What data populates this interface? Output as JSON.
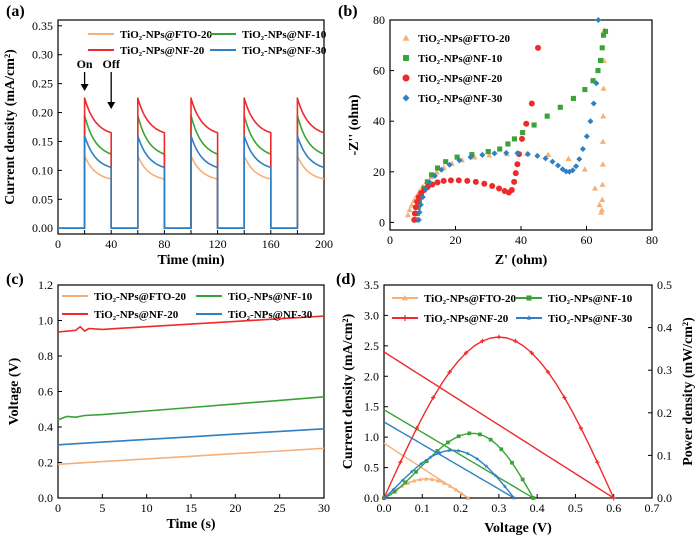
{
  "chart_data": [
    {
      "panel": "(a)",
      "type": "line",
      "xlabel": "Time (min)",
      "ylabel": "Current density (mA/cm²)",
      "xlim": [
        0,
        200
      ],
      "ylim": [
        -0.01,
        0.36
      ],
      "xticks": [
        0,
        20,
        40,
        60,
        80,
        100,
        120,
        140,
        160,
        180,
        200
      ],
      "xtick_labels": [
        "0",
        "",
        "40",
        "",
        "80",
        "",
        "120",
        "",
        "160",
        "",
        "200"
      ],
      "yticks": [
        0.0,
        0.05,
        0.1,
        0.15,
        0.2,
        0.25,
        0.3,
        0.35
      ],
      "ytick_labels": [
        "0.00",
        "0.05",
        "0.10",
        "0.15",
        "0.20",
        "0.25",
        "0.30",
        "0.35"
      ],
      "on_intervals": [
        [
          20,
          40
        ],
        [
          60,
          80
        ],
        [
          100,
          120
        ],
        [
          140,
          160
        ],
        [
          180,
          200
        ]
      ],
      "annotations": [
        {
          "text": "On",
          "x": 20
        },
        {
          "text": "Off",
          "x": 40
        }
      ],
      "legend": "top",
      "series": [
        {
          "name": "TiO₂-NPs@FTO-20",
          "color": "#f5b07a",
          "peak": 0.125,
          "end": 0.085
        },
        {
          "name": "TiO₂-NPs@NF-10",
          "color": "#3aa335",
          "peak": 0.195,
          "end": 0.128
        },
        {
          "name": "TiO₂-NPs@NF-20",
          "color": "#ee2a2a",
          "peak": 0.225,
          "end": 0.165
        },
        {
          "name": "TiO₂-NPs@NF-30",
          "color": "#2e7fc4",
          "peak": 0.16,
          "end": 0.105
        }
      ]
    },
    {
      "panel": "(b)",
      "type": "scatter",
      "xlabel": "Z' (ohm)",
      "ylabel": "-Z'' (ohm)",
      "xlim": [
        0,
        80
      ],
      "ylim": [
        -3,
        80
      ],
      "xticks": [
        0,
        20,
        40,
        60,
        80
      ],
      "yticks": [
        0,
        20,
        40,
        60,
        80
      ],
      "legend": "top-left",
      "series": [
        {
          "name": "TiO₂-NPs@FTO-20",
          "color": "#f5b07a",
          "marker": "triangle",
          "x": [
            5.5,
            6.0,
            6.6,
            7.3,
            8.1,
            9.0,
            10.0,
            11.2,
            12.6,
            14.3,
            16.4,
            18.9,
            22.0,
            25.8,
            30.3,
            35.7,
            41.8,
            48.3,
            54.5,
            59.5,
            62.6,
            64.0,
            64.5,
            64.7,
            64.8,
            64.9,
            65.0,
            65.0,
            65.1,
            65.2,
            65.3,
            65.4
          ],
          "y": [
            3.0,
            5.0,
            6.8,
            8.6,
            10.4,
            12.3,
            14.2,
            16.1,
            18.0,
            19.9,
            21.7,
            23.3,
            24.7,
            25.8,
            26.6,
            27.1,
            27.2,
            26.8,
            25.2,
            21.0,
            13.5,
            7.0,
            4.0,
            5.0,
            9.0,
            15.0,
            23.0,
            32.0,
            42.0,
            53.0,
            64.0,
            76.0
          ]
        },
        {
          "name": "TiO₂-NPs@NF-10",
          "color": "#3aa335",
          "marker": "square",
          "x": [
            8.1,
            8.3,
            8.6,
            9.0,
            9.6,
            10.4,
            11.4,
            12.7,
            14.5,
            17.0,
            20.5,
            25.0,
            30.0,
            33.5,
            36.0,
            38.0,
            40.5,
            44.0,
            48.0,
            52.0,
            56.0,
            59.5,
            62.0,
            63.5,
            64.3,
            64.8,
            65.2,
            65.8
          ],
          "y": [
            1.0,
            3.5,
            6.0,
            8.5,
            11.0,
            13.5,
            16.0,
            18.8,
            21.5,
            24.0,
            25.8,
            26.8,
            28.0,
            29.0,
            31.0,
            33.0,
            35.5,
            38.5,
            42.0,
            45.5,
            49.0,
            52.5,
            56.0,
            60.0,
            64.0,
            69.0,
            74.0,
            75.5
          ]
        },
        {
          "name": "TiO₂-NPs@NF-20",
          "color": "#ee2a2a",
          "marker": "circle",
          "x": [
            7.4,
            7.6,
            7.9,
            8.3,
            8.8,
            9.5,
            10.4,
            11.5,
            12.9,
            14.5,
            16.4,
            18.6,
            21.0,
            23.6,
            26.2,
            28.8,
            31.2,
            33.3,
            35.0,
            36.3,
            37.2,
            37.9,
            38.4,
            38.9,
            39.4,
            40.3,
            41.6,
            43.3,
            45.2
          ],
          "y": [
            1.0,
            3.5,
            6.0,
            8.2,
            10.0,
            11.6,
            12.8,
            14.0,
            15.0,
            15.8,
            16.4,
            16.6,
            16.6,
            16.4,
            16.0,
            15.3,
            14.4,
            13.4,
            12.4,
            11.8,
            12.8,
            16.0,
            19.5,
            23.0,
            27.0,
            33.0,
            39.0,
            47.0,
            69.0
          ]
        },
        {
          "name": "TiO₂-NPs@NF-30",
          "color": "#2e7fc4",
          "marker": "diamond",
          "x": [
            8.8,
            9.0,
            9.4,
            10.0,
            10.9,
            12.1,
            13.7,
            15.7,
            18.2,
            21.2,
            24.6,
            28.2,
            31.9,
            35.5,
            38.9,
            42.1,
            45.0,
            47.5,
            49.6,
            51.3,
            52.7,
            53.8,
            54.8,
            55.8,
            56.8,
            57.8,
            58.9,
            60.1,
            61.2,
            62.2,
            63.0,
            63.6
          ],
          "y": [
            1.0,
            4.0,
            7.0,
            10.0,
            13.0,
            15.8,
            18.4,
            20.8,
            22.8,
            24.5,
            25.8,
            26.7,
            27.3,
            27.5,
            27.4,
            27.0,
            26.3,
            25.3,
            24.0,
            22.5,
            21.0,
            20.1,
            20.0,
            20.6,
            22.2,
            25.0,
            29.0,
            34.0,
            40.0,
            47.0,
            55.0,
            80.0
          ]
        }
      ]
    },
    {
      "panel": "(c)",
      "type": "line",
      "xlabel": "Time (s)",
      "ylabel": "Voltage (V)",
      "xlim": [
        0,
        30
      ],
      "ylim": [
        0,
        1.2
      ],
      "xticks": [
        0,
        5,
        10,
        15,
        20,
        25,
        30
      ],
      "yticks": [
        0.0,
        0.2,
        0.4,
        0.6,
        0.8,
        1.0,
        1.2
      ],
      "ytick_labels": [
        "0.0",
        "0.2",
        "0.4",
        "0.6",
        "0.8",
        "1.0",
        "1.2"
      ],
      "legend": "top",
      "series": [
        {
          "name": "TiO₂-NPs@FTO-20",
          "color": "#f5b07a",
          "x": [
            0,
            5,
            10,
            15,
            20,
            25,
            30
          ],
          "y": [
            0.19,
            0.205,
            0.22,
            0.235,
            0.25,
            0.265,
            0.28
          ]
        },
        {
          "name": "TiO₂-NPs@NF-10",
          "color": "#3aa335",
          "x": [
            0,
            1,
            2,
            3,
            5,
            10,
            15,
            20,
            25,
            30
          ],
          "y": [
            0.44,
            0.46,
            0.455,
            0.465,
            0.47,
            0.49,
            0.51,
            0.53,
            0.55,
            0.57
          ]
        },
        {
          "name": "TiO₂-NPs@NF-20",
          "color": "#ee2a2a",
          "x": [
            0,
            2,
            2.5,
            3,
            3.5,
            5,
            10,
            15,
            20,
            25,
            30
          ],
          "y": [
            0.935,
            0.945,
            0.965,
            0.94,
            0.955,
            0.95,
            0.965,
            0.98,
            0.995,
            1.01,
            1.025
          ]
        },
        {
          "name": "TiO₂-NPs@NF-30",
          "color": "#2e7fc4",
          "x": [
            0,
            5,
            10,
            15,
            20,
            25,
            30
          ],
          "y": [
            0.3,
            0.315,
            0.33,
            0.345,
            0.36,
            0.375,
            0.39
          ]
        }
      ]
    },
    {
      "panel": "(d)",
      "type": "line",
      "xlabel": "Voltage (V)",
      "ylabel": "Current density (mA/cm²)",
      "y2label": "Power density (mW/cm²)",
      "xlim": [
        0,
        0.7
      ],
      "ylim": [
        0,
        3.5
      ],
      "y2lim": [
        0,
        0.5
      ],
      "xticks": [
        0.0,
        0.1,
        0.2,
        0.3,
        0.4,
        0.5,
        0.6,
        0.7
      ],
      "xtick_labels": [
        "0.0",
        "0.1",
        "0.2",
        "0.3",
        "0.4",
        "0.5",
        "0.6",
        "0.7"
      ],
      "yticks": [
        0.0,
        0.5,
        1.0,
        1.5,
        2.0,
        2.5,
        3.0,
        3.5
      ],
      "ytick_labels": [
        "0.0",
        "0.5",
        "1.0",
        "1.5",
        "2.0",
        "2.5",
        "3.0",
        "3.5"
      ],
      "y2ticks": [
        0.0,
        0.1,
        0.2,
        0.3,
        0.4,
        0.5
      ],
      "y2tick_labels": [
        "0.0",
        "0.1",
        "0.2",
        "0.3",
        "0.4",
        "0.5"
      ],
      "legend": "top",
      "series": [
        {
          "name": "TiO₂-NPs@FTO-20",
          "color": "#f5b07a",
          "marker": "triangle",
          "voc": 0.22,
          "jsc": 0.9,
          "pmax": 0.045,
          "vmp": 0.11
        },
        {
          "name": "TiO₂-NPs@NF-10",
          "color": "#3aa335",
          "marker": "square",
          "voc": 0.39,
          "jsc": 1.45,
          "pmax": 0.152,
          "vmp": 0.23
        },
        {
          "name": "TiO₂-NPs@NF-20",
          "color": "#ee2a2a",
          "marker": "plus",
          "voc": 0.6,
          "jsc": 2.4,
          "pmax": 0.378,
          "vmp": 0.3
        },
        {
          "name": "TiO₂-NPs@NF-30",
          "color": "#2e7fc4",
          "marker": "star",
          "voc": 0.34,
          "jsc": 1.25,
          "pmax": 0.112,
          "vmp": 0.18
        }
      ]
    }
  ]
}
